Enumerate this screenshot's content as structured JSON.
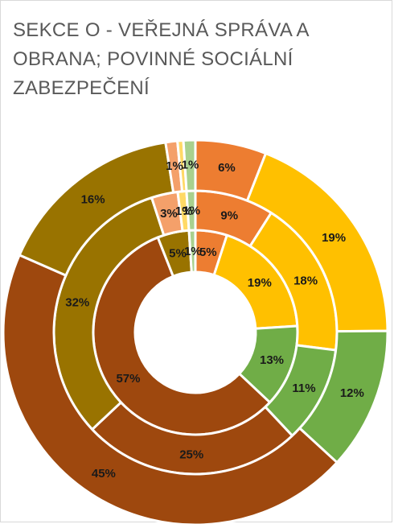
{
  "title_lines": [
    "SEKCE O - VEŘEJNÁ SPRÁVA A",
    "OBRANA; POVINNÉ SOCIÁLNÍ",
    "ZABEZPEČENÍ"
  ],
  "chart_data": {
    "type": "doughnut",
    "title": "SEKCE O - VEŘEJNÁ SPRÁVA A OBRANA; POVINNÉ SOCIÁLNÍ ZABEZPEČENÍ",
    "unit": "%",
    "colors": [
      "#ed7d31",
      "#ffc000",
      "#70ad47",
      "#9e480e",
      "#997300",
      "#f4a06a",
      "#ffd966",
      "#a9d18e"
    ],
    "rings": [
      {
        "ring": "inner",
        "values": [
          5,
          19,
          13,
          57,
          5,
          0,
          0,
          1
        ],
        "labels": [
          "5%",
          "19%",
          "13%",
          "57%",
          "5%",
          "",
          "",
          "1%"
        ]
      },
      {
        "ring": "middle",
        "values": [
          9,
          18,
          11,
          25,
          32,
          3,
          1,
          1
        ],
        "labels": [
          "9%",
          "18%",
          "11%",
          "25%",
          "32%",
          "3%",
          "1%",
          "1%"
        ]
      },
      {
        "ring": "outer",
        "values": [
          6,
          19,
          12,
          45,
          16,
          1,
          0.5,
          1
        ],
        "labels": [
          "6%",
          "19%",
          "12%",
          "45%",
          "16%",
          "1%",
          "",
          "1%"
        ]
      }
    ]
  }
}
